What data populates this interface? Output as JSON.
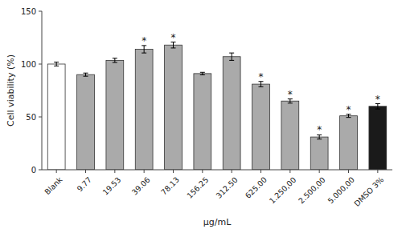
{
  "chart_data": {
    "type": "bar",
    "categories": [
      "Blank",
      "9.77",
      "19.53",
      "39.06",
      "78.13",
      "156.25",
      "312.50",
      "625.00",
      "1.250,00",
      "2.500,00",
      "5.000,00",
      "DMSO 3%"
    ],
    "values": [
      100.0,
      90.0,
      103.5,
      114.0,
      118.0,
      91.0,
      107.0,
      81.0,
      65.0,
      31.0,
      51.0,
      60.0
    ],
    "errors": [
      1.8,
      1.5,
      2.0,
      3.5,
      2.8,
      1.2,
      3.5,
      2.5,
      2.0,
      2.0,
      1.5,
      2.5
    ],
    "annotations": [
      null,
      null,
      null,
      "*",
      "*",
      null,
      null,
      "*",
      "*",
      "*",
      "*",
      "*"
    ],
    "colors": [
      "#ffffff",
      "#aaaaaa",
      "#aaaaaa",
      "#aaaaaa",
      "#aaaaaa",
      "#aaaaaa",
      "#aaaaaa",
      "#aaaaaa",
      "#aaaaaa",
      "#aaaaaa",
      "#aaaaaa",
      "#1a1a1a"
    ],
    "xlabel": "μg/mL",
    "ylabel": "Cell viability (%)",
    "ylim": [
      0,
      150
    ],
    "yticks": [
      0,
      50,
      100,
      150
    ],
    "grid": false
  }
}
